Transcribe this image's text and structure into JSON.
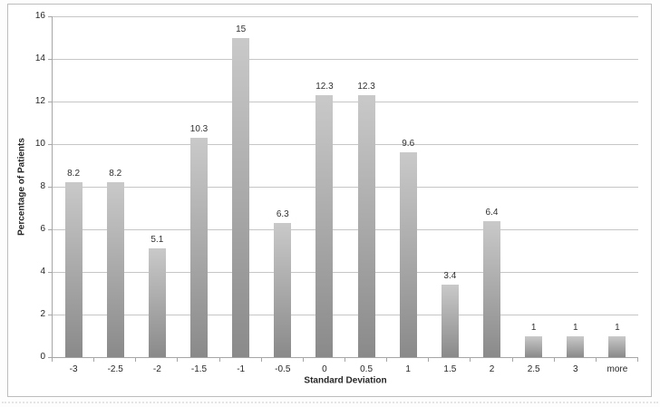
{
  "chart_data": {
    "type": "bar",
    "title": "",
    "categories": [
      "-3",
      "-2.5",
      "-2",
      "-1.5",
      "-1",
      "-0.5",
      "0",
      "0.5",
      "1",
      "1.5",
      "2",
      "2.5",
      "3",
      "more"
    ],
    "values": [
      8.2,
      8.2,
      5.1,
      10.3,
      15,
      6.3,
      12.3,
      12.3,
      9.6,
      3.4,
      6.4,
      1,
      1,
      1
    ],
    "data_labels": [
      "8.2",
      "8.2",
      "5.1",
      "10.3",
      "15",
      "6.3",
      "12.3",
      "12.3",
      "9.6",
      "3.4",
      "6.4",
      "1",
      "1",
      "1"
    ],
    "xlabel": "Standard Deviation",
    "ylabel": "Percentage of Patients",
    "ylim": [
      0,
      16
    ],
    "ytick_step": 2,
    "ytick_labels": [
      "0",
      "2",
      "4",
      "6",
      "8",
      "10",
      "12",
      "14",
      "16"
    ],
    "grid": true,
    "legend": "none",
    "colors": {
      "bar_gradient_top": "#c9c9c9",
      "bar_gradient_bottom": "#8a8a8a",
      "gridline": "#c6c6c6",
      "axis_line": "#a6a6a6",
      "text": "#262626",
      "frame_border": "#bdbdbd"
    }
  }
}
